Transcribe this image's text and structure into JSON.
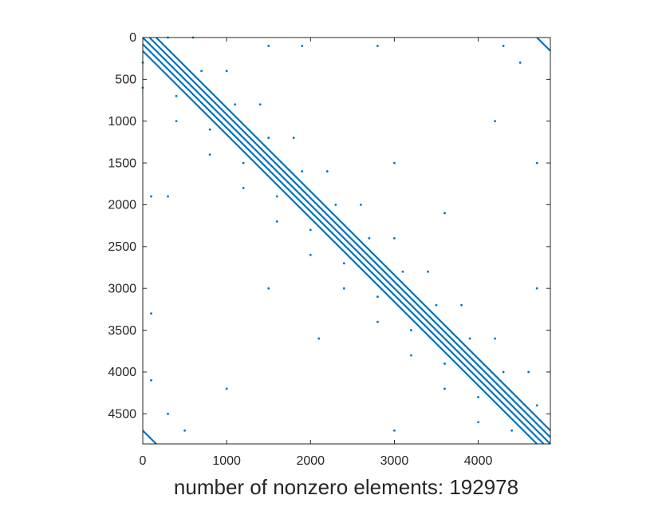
{
  "chart_data": {
    "type": "spy",
    "xlabel": "number of nonzero elements: 192978",
    "color": "#0072bd",
    "xlim": [
      0,
      4860
    ],
    "ylim": [
      0,
      4860
    ],
    "ydir": "reverse",
    "xticks": [
      0,
      1000,
      2000,
      3000,
      4000
    ],
    "yticks": [
      0,
      500,
      1000,
      1500,
      2000,
      2500,
      3000,
      3500,
      4000,
      4500
    ],
    "lines": [
      {
        "x": [
          160,
          4860
        ],
        "y": [
          0,
          4700
        ]
      },
      {
        "x": [
          80,
          4860
        ],
        "y": [
          0,
          4780
        ]
      },
      {
        "x": [
          0,
          4860
        ],
        "y": [
          0,
          4860
        ]
      },
      {
        "x": [
          0,
          4780
        ],
        "y": [
          80,
          4860
        ]
      },
      {
        "x": [
          0,
          4700
        ],
        "y": [
          160,
          4860
        ]
      },
      {
        "x": [
          4700,
          4860
        ],
        "y": [
          0,
          160
        ]
      },
      {
        "x": [
          0,
          160
        ],
        "y": [
          4700,
          4860
        ]
      }
    ],
    "points": {
      "x": [
        300,
        700,
        1100,
        1500,
        1900,
        2300,
        2700,
        3100,
        3500,
        3900,
        4300,
        4700,
        0,
        400,
        800,
        1200,
        1600,
        2000,
        2400,
        2800,
        3200,
        3600,
        4000,
        4400,
        600,
        1000,
        1400,
        1800,
        2200,
        2600,
        3000,
        3400,
        3800,
        4200,
        4600,
        0,
        400,
        800,
        1200,
        1600,
        2000,
        2400,
        2800,
        3200,
        3600,
        4000,
        1500,
        1900,
        2800,
        4300,
        4500,
        100,
        300,
        100,
        100,
        300,
        500,
        4700,
        4700,
        3000,
        1500,
        3000,
        1000,
        4200,
        2100,
        3600
      ],
      "y": [
        0,
        400,
        800,
        1200,
        1600,
        2000,
        2400,
        2800,
        3200,
        3600,
        4000,
        4400,
        300,
        700,
        1100,
        1500,
        1900,
        2300,
        2700,
        3100,
        3500,
        3900,
        4300,
        4700,
        0,
        400,
        800,
        1200,
        1600,
        2000,
        2400,
        2800,
        3200,
        3600,
        4000,
        600,
        1000,
        1400,
        1800,
        2200,
        2600,
        3000,
        3400,
        3800,
        4200,
        4600,
        100,
        100,
        100,
        100,
        300,
        1900,
        1900,
        3300,
        4100,
        4500,
        4700,
        1500,
        3000,
        4700,
        3000,
        1500,
        4200,
        1000,
        3600,
        2100
      ]
    }
  }
}
